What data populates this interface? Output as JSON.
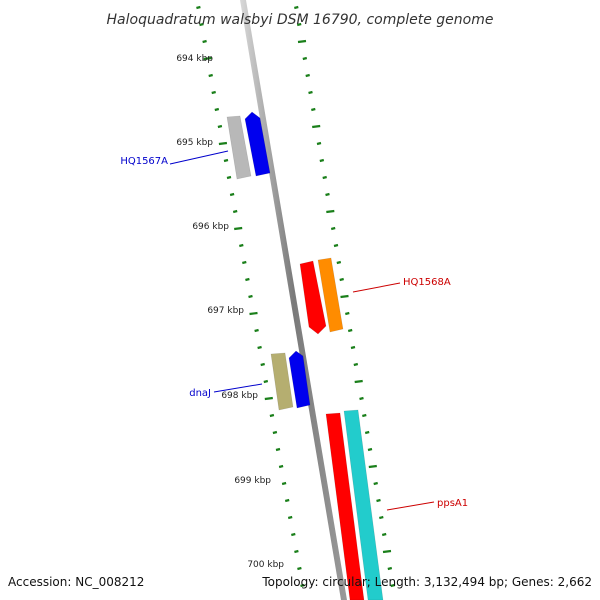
{
  "title": "Haloquadratum walsbyi DSM 16790, complete genome",
  "footer": {
    "accession": "Accession: NC_008212",
    "topology": "Topology: circular; Length: 3,132,494 bp; Genes: 2,662"
  },
  "ruler_labels": [
    "694 kbp",
    "695 kbp",
    "696 kbp",
    "697 kbp",
    "698 kbp",
    "699 kbp",
    "700 kbp"
  ],
  "colors": {
    "backbone": "#7a7a7a",
    "tick_marks": "#1a7f1a",
    "label_blue": "#0000cc",
    "label_red": "#cc0000"
  },
  "gene_labels": [
    {
      "text": "HQ1567A",
      "color": "#0000cc"
    },
    {
      "text": "HQ1568A",
      "color": "#cc0000"
    },
    {
      "text": "dnaJ",
      "color": "#0000cc"
    },
    {
      "text": "ppsA1",
      "color": "#cc0000"
    }
  ],
  "features": [
    {
      "kind": "CDS",
      "color": "#b8b8b8",
      "strand": "plus"
    },
    {
      "kind": "gene",
      "color": "#0000ee",
      "strand": "plus"
    },
    {
      "kind": "CDS",
      "color": "#ff0000",
      "strand": "minus"
    },
    {
      "kind": "gene",
      "color": "#ff8c00",
      "strand": "minus"
    },
    {
      "kind": "CDS",
      "color": "#b5ae70",
      "strand": "plus"
    },
    {
      "kind": "gene",
      "color": "#0000ee",
      "strand": "plus"
    },
    {
      "kind": "CDS",
      "color": "#ff0000",
      "strand": "minus"
    },
    {
      "kind": "gene",
      "color": "#22cccc",
      "strand": "minus"
    }
  ]
}
